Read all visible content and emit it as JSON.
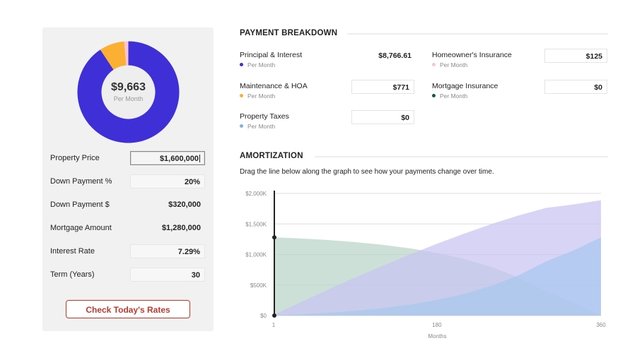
{
  "summary": {
    "total": "$9,663",
    "per_month": "Per Month",
    "donut_shares": [
      {
        "name": "Principal & Interest",
        "value": 8766.61,
        "color": "#3f2fd6"
      },
      {
        "name": "Maintenance & HOA",
        "value": 771,
        "color": "#fbb034"
      },
      {
        "name": "Homeowner's Insurance",
        "value": 125,
        "color": "#f7c6cf"
      }
    ]
  },
  "inputs": [
    {
      "label": "Property Price",
      "value": "$1,600,000",
      "style": "active"
    },
    {
      "label": "Down Payment %",
      "value": "20%",
      "style": "box"
    },
    {
      "label": "Down Payment $",
      "value": "$320,000",
      "style": "plain"
    },
    {
      "label": "Mortgage Amount",
      "value": "$1,280,000",
      "style": "plain"
    },
    {
      "label": "Interest Rate",
      "value": "7.29%",
      "style": "box"
    },
    {
      "label": "Term (Years)",
      "value": "30",
      "style": "box"
    }
  ],
  "cta_label": "Check Today's Rates",
  "breakdown": {
    "title": "PAYMENT BREAKDOWN",
    "items": {
      "principal": {
        "label": "Principal & Interest",
        "sub": "Per Month",
        "value": "$8,766.61",
        "dot": "#3f2fd6"
      },
      "maintenance": {
        "label": "Maintenance & HOA",
        "sub": "Per Month",
        "value": "$771",
        "dot": "#fbb034"
      },
      "taxes": {
        "label": "Property Taxes",
        "sub": "Per Month",
        "value": "$0",
        "dot": "#7fb0e0"
      },
      "insurance": {
        "label": "Homeowner's Insurance",
        "sub": "Per Month",
        "value": "$125",
        "dot": "#f7c6cf"
      },
      "mortgage_ins": {
        "label": "Mortgage Insurance",
        "sub": "Per Month",
        "value": "$0",
        "dot": "#0f5b4a"
      }
    }
  },
  "amortization": {
    "title": "AMORTIZATION",
    "description": "Drag the line below along the graph to see how your payments change over time."
  },
  "chart_data": {
    "type": "area",
    "xlabel": "Months",
    "x_ticks": [
      "1",
      "180",
      "360"
    ],
    "y_ticks": [
      "$0",
      "$500K",
      "$1,000K",
      "$1,500K",
      "$2,000K"
    ],
    "xlim": [
      1,
      360
    ],
    "ylim": [
      0,
      2000000
    ],
    "x": [
      1,
      30,
      60,
      90,
      120,
      150,
      180,
      210,
      240,
      270,
      300,
      330,
      360
    ],
    "series": [
      {
        "values": [
          1280000,
          1262000,
          1237000,
          1204000,
          1160000,
          1102000,
          1026000,
          926000,
          794000,
          620000,
          392000,
          213000,
          0
        ],
        "color": "#b9d4c8"
      },
      {
        "values": [
          7800,
          214000,
          420000,
          620000,
          812000,
          997000,
          1174000,
          1341000,
          1498000,
          1641000,
          1763000,
          1820000,
          1889000
        ],
        "color": "#c8c4f2"
      },
      {
        "values": [
          1000,
          18000,
          43000,
          76000,
          120000,
          178000,
          254000,
          354000,
          486000,
          660000,
          888000,
          1067000,
          1280000
        ],
        "color": "#a9c8ee"
      }
    ],
    "grid": true,
    "drag_handle_month": 1
  }
}
